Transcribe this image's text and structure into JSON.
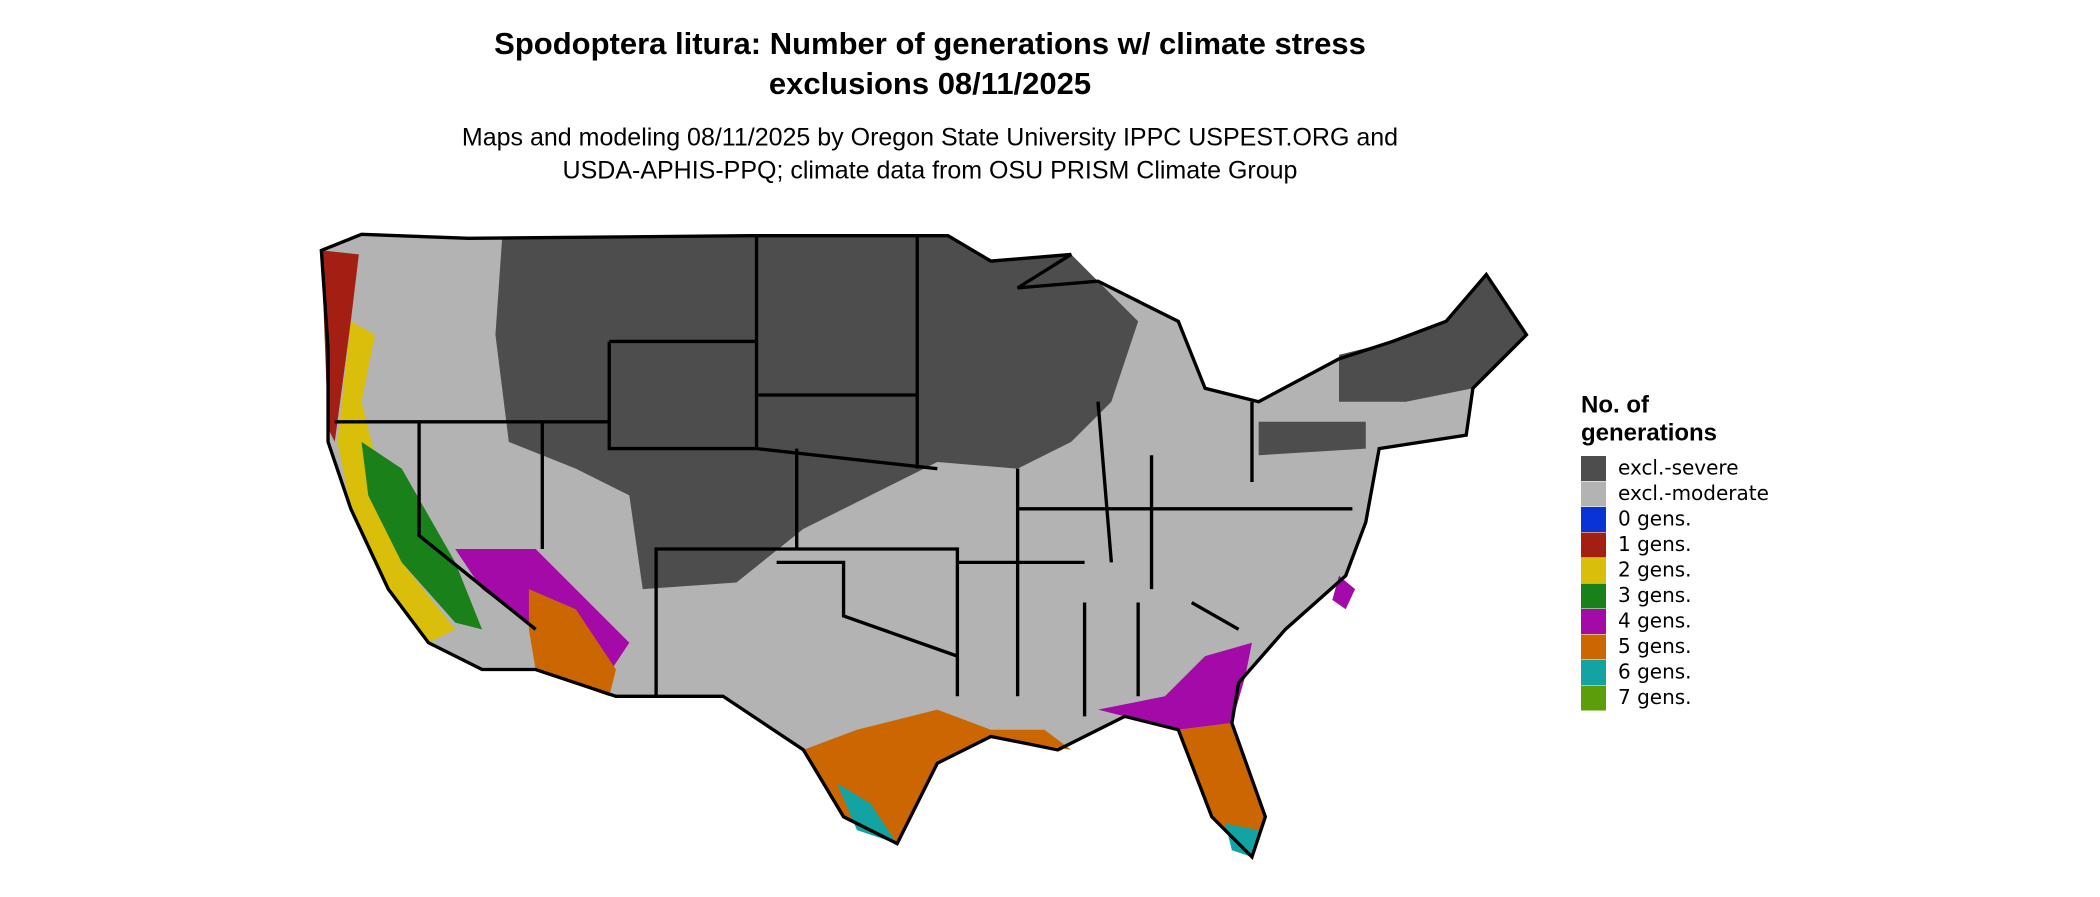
{
  "title": [
    "Spodoptera litura: Number of generations w/ climate stress",
    "exclusions 08/11/2025"
  ],
  "subtitle": [
    "Maps and modeling 08/11/2025 by Oregon State University IPPC USPEST.ORG and",
    "USDA-APHIS-PPQ; climate data from OSU PRISM Climate Group"
  ],
  "legend": {
    "title": [
      "No. of",
      "generations"
    ],
    "items": [
      {
        "label": "excl.-severe",
        "color": "#4d4d4d"
      },
      {
        "label": "excl.-moderate",
        "color": "#b3b3b3"
      },
      {
        "label": "0 gens.",
        "color": "#0a33d6"
      },
      {
        "label": "1 gens.",
        "color": "#a31f14"
      },
      {
        "label": "2 gens.",
        "color": "#d9bf0a"
      },
      {
        "label": "3 gens.",
        "color": "#1a801a"
      },
      {
        "label": "4 gens.",
        "color": "#a30aa8"
      },
      {
        "label": "5 gens.",
        "color": "#cc6600"
      },
      {
        "label": "6 gens.",
        "color": "#14a3a3"
      },
      {
        "label": "7 gens.",
        "color": "#5c9e0a"
      }
    ]
  }
}
